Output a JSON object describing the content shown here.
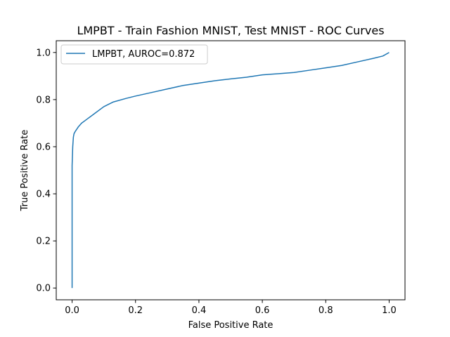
{
  "chart_data": {
    "type": "line",
    "title": "LMPBT - Train Fashion MNIST, Test MNIST - ROC Curves",
    "xlabel": "False Positive Rate",
    "ylabel": "True Positive Rate",
    "xlim": [
      -0.05,
      1.05
    ],
    "ylim": [
      -0.05,
      1.05
    ],
    "xticks": [
      0.0,
      0.2,
      0.4,
      0.6,
      0.8,
      1.0
    ],
    "yticks": [
      0.0,
      0.2,
      0.4,
      0.6,
      0.8,
      1.0
    ],
    "xtick_labels": [
      "0.0",
      "0.2",
      "0.4",
      "0.6",
      "0.8",
      "1.0"
    ],
    "ytick_labels": [
      "0.0",
      "0.2",
      "0.4",
      "0.6",
      "0.8",
      "1.0"
    ],
    "grid": false,
    "legend_position": "top-left",
    "series": [
      {
        "name": "LMPBT, AUROC=0.872",
        "color": "#1f77b4",
        "x": [
          0.0,
          0.0,
          0.0,
          0.002,
          0.004,
          0.006,
          0.01,
          0.015,
          0.02,
          0.03,
          0.04,
          0.05,
          0.07,
          0.1,
          0.13,
          0.17,
          0.2,
          0.25,
          0.3,
          0.35,
          0.4,
          0.45,
          0.5,
          0.55,
          0.6,
          0.65,
          0.7,
          0.75,
          0.8,
          0.85,
          0.9,
          0.95,
          0.98,
          1.0
        ],
        "y": [
          0.0,
          0.3,
          0.52,
          0.6,
          0.64,
          0.655,
          0.665,
          0.675,
          0.685,
          0.7,
          0.71,
          0.72,
          0.74,
          0.77,
          0.79,
          0.805,
          0.815,
          0.83,
          0.845,
          0.86,
          0.87,
          0.88,
          0.888,
          0.895,
          0.905,
          0.91,
          0.915,
          0.925,
          0.935,
          0.945,
          0.96,
          0.975,
          0.985,
          1.0
        ]
      }
    ]
  }
}
